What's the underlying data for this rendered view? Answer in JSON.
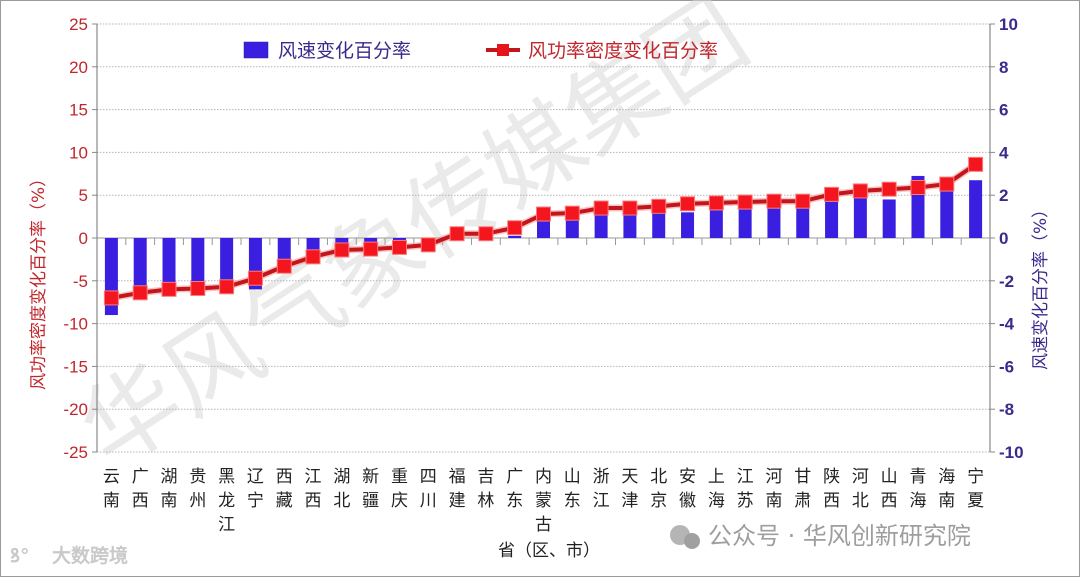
{
  "chart_data": {
    "type": "bar+line",
    "title": "",
    "xlabel": "省（区、市）",
    "ylabel_left": "风功率密度变化百分率（%）",
    "ylabel_right": "风速变化百分率（%）",
    "ylim_left": [
      -25,
      25
    ],
    "yticks_left": [
      25,
      20,
      15,
      10,
      5,
      0,
      -5,
      -10,
      -15,
      -20,
      -25
    ],
    "ylim_right": [
      -10,
      10
    ],
    "yticks_right": [
      10,
      8,
      6,
      4,
      2,
      0,
      -2,
      -4,
      -6,
      -8,
      -10
    ],
    "grid": true,
    "legend_position": "top",
    "categories": [
      "云南",
      "广西",
      "湖南",
      "贵州",
      "黑龙江",
      "辽宁",
      "西藏",
      "江西",
      "湖北",
      "新疆",
      "重庆",
      "四川",
      "福建",
      "吉林",
      "广东",
      "内蒙古",
      "山东",
      "浙江",
      "天津",
      "北京",
      "安徽",
      "上海",
      "江苏",
      "河南",
      "甘肃",
      "陕西",
      "河北",
      "山西",
      "青海",
      "海南",
      "宁夏"
    ],
    "series": [
      {
        "name": "风速变化百分率",
        "type": "bar",
        "axis": "right",
        "color": "#3a1fe0",
        "values": [
          -3.6,
          -2.8,
          -2.6,
          -2.5,
          -2.5,
          -2.4,
          -1.3,
          -0.9,
          -0.4,
          -0.3,
          -0.2,
          -0.1,
          0.0,
          0.0,
          0.1,
          0.8,
          0.9,
          1.1,
          1.1,
          1.2,
          1.2,
          1.3,
          1.4,
          1.45,
          1.5,
          1.7,
          1.9,
          1.8,
          2.9,
          2.2,
          2.7
        ]
      },
      {
        "name": "风功率密度变化百分率",
        "type": "line",
        "axis": "left",
        "color": "#e8141c",
        "values": [
          -7.0,
          -6.4,
          -6.0,
          -5.9,
          -5.7,
          -4.7,
          -3.3,
          -2.2,
          -1.4,
          -1.3,
          -1.1,
          -0.8,
          0.5,
          0.5,
          1.2,
          2.8,
          2.9,
          3.5,
          3.5,
          3.7,
          4.0,
          4.1,
          4.2,
          4.3,
          4.3,
          5.1,
          5.5,
          5.7,
          5.9,
          6.3,
          8.6
        ]
      }
    ]
  },
  "labels": {
    "x_axis_title": "省（区、市）",
    "y_left_title": "风功率密度变化百分率（%）",
    "y_right_title": "风速变化百分率（%）",
    "legend_bar": "风速变化百分率",
    "legend_line": "风功率密度变化百分率"
  },
  "watermarks": {
    "diagonal": "华风气象传媒集团",
    "wechat": "公众号 · 华风创新研究院",
    "corner": "大数跨境"
  }
}
